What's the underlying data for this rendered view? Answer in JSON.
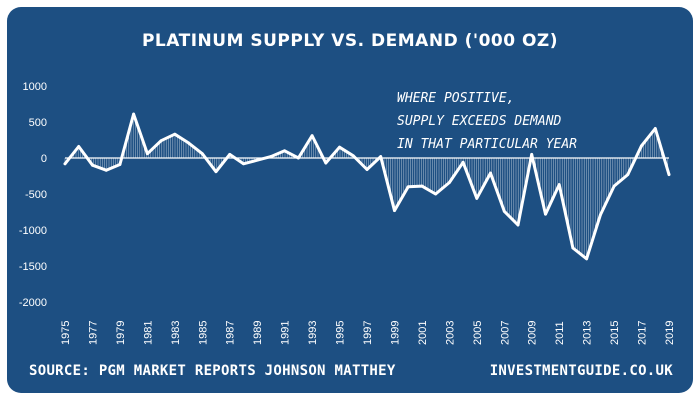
{
  "colors": {
    "background": "#1d4f82",
    "line": "#ffffff",
    "text": "#ffffff"
  },
  "chart_data": {
    "type": "line",
    "title": "PLATINUM SUPPLY VS. DEMAND ('000 OZ)",
    "xlabel": "",
    "ylabel": "",
    "ylim": [
      -2000,
      1000
    ],
    "yticks": [
      1000,
      500,
      0,
      -500,
      -1000,
      -1500,
      -2000
    ],
    "xtick_labels": [
      "1975",
      "1977",
      "1979",
      "1981",
      "1983",
      "1985",
      "1987",
      "1989",
      "1991",
      "1993",
      "1995",
      "1997",
      "1999",
      "2001",
      "2003",
      "2005",
      "2007",
      "2009",
      "2011",
      "2013",
      "2015",
      "2017",
      "2019"
    ],
    "grid": false,
    "legend": "none",
    "x": [
      1975,
      1976,
      1977,
      1978,
      1979,
      1980,
      1981,
      1982,
      1983,
      1984,
      1985,
      1986,
      1987,
      1988,
      1989,
      1990,
      1991,
      1992,
      1993,
      1994,
      1995,
      1996,
      1997,
      1998,
      1999,
      2000,
      2001,
      2002,
      2003,
      2004,
      2005,
      2006,
      2007,
      2008,
      2009,
      2010,
      2011,
      2012,
      2013,
      2014,
      2015,
      2016,
      2017,
      2018,
      2019
    ],
    "values": [
      -80,
      160,
      -100,
      -170,
      -90,
      610,
      60,
      240,
      330,
      210,
      60,
      -190,
      50,
      -80,
      -30,
      20,
      100,
      0,
      310,
      -70,
      150,
      30,
      -160,
      20,
      -730,
      -400,
      -390,
      -500,
      -340,
      -60,
      -560,
      -210,
      -740,
      -930,
      50,
      -780,
      -370,
      -1250,
      -1400,
      -790,
      -390,
      -230,
      170,
      410,
      -230
    ],
    "annotation": [
      "WHERE POSITIVE,",
      "SUPPLY EXCEEDS DEMAND",
      "IN THAT PARTICULAR YEAR"
    ]
  },
  "footer": {
    "source": "SOURCE: PGM MARKET REPORTS JOHNSON MATTHEY",
    "site": "INVESTMENTGUIDE.CO.UK"
  }
}
